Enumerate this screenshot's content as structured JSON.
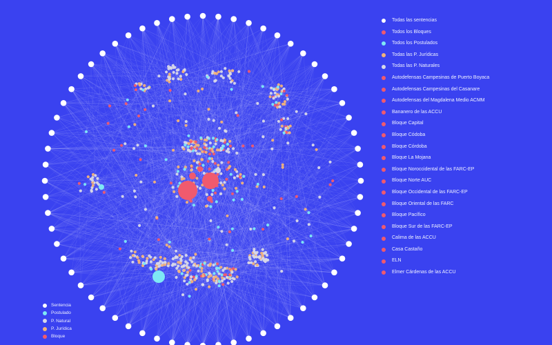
{
  "colors": {
    "background": "#3a42f0",
    "sentencia": "#ffffff",
    "postulado": "#7ee8f5",
    "p_natural": "#d8d8e8",
    "p_juridica": "#f2b27a",
    "bloque": "#f05a6e",
    "edge": "#ffffff"
  },
  "filters": [
    {
      "label": "Todas las sentencias",
      "color": "#ffffff"
    },
    {
      "label": "Todos los Bloques",
      "color": "#f05a6e"
    },
    {
      "label": "Todos los Postulados",
      "color": "#7ee8f5"
    },
    {
      "label": "Todas las P. Jurídicas",
      "color": "#f2b27a"
    },
    {
      "label": "Todas las P. Naturales",
      "color": "#d8d8e8"
    },
    {
      "label": "Autodefensas Campesinas de Puerto Boyaca",
      "color": "#f05a6e"
    },
    {
      "label": "Autodefensas Campesinas del Casanare",
      "color": "#f05a6e"
    },
    {
      "label": "Autodefensas del Magdalena Medio ACMM",
      "color": "#f05a6e"
    },
    {
      "label": "Bananero de las ACCU",
      "color": "#f05a6e"
    },
    {
      "label": "Bloque Capital",
      "color": "#f05a6e"
    },
    {
      "label": "Bloque Códoba",
      "color": "#f05a6e"
    },
    {
      "label": "Bloque Córdoba",
      "color": "#f05a6e"
    },
    {
      "label": "Bloque La Mojana",
      "color": "#f05a6e"
    },
    {
      "label": "Bloque Noroccidental de las FARC-EP",
      "color": "#f05a6e"
    },
    {
      "label": "Bloque Norte AUC",
      "color": "#f05a6e"
    },
    {
      "label": "Bloque Occidental de las FARC-EP",
      "color": "#f05a6e"
    },
    {
      "label": "Bloque Oriental de las FARC",
      "color": "#f05a6e"
    },
    {
      "label": "Bloque Pacífico",
      "color": "#f05a6e"
    },
    {
      "label": "Bloque Sur de las FARC-EP",
      "color": "#f05a6e"
    },
    {
      "label": "Calima de las ACCU",
      "color": "#f05a6e"
    },
    {
      "label": "Casa Castaño",
      "color": "#f05a6e"
    },
    {
      "label": "ELN",
      "color": "#f05a6e"
    },
    {
      "label": "Elmer Cárdenas de las ACCU",
      "color": "#f05a6e"
    }
  ],
  "legend": [
    {
      "label": "Sentencia",
      "color": "#ffffff"
    },
    {
      "label": "Postulado",
      "color": "#7ee8f5"
    },
    {
      "label": "P. Natural",
      "color": "#d8d8e8"
    },
    {
      "label": "P. Jurídica",
      "color": "#f2b27a"
    },
    {
      "label": "Bloque",
      "color": "#f05a6e"
    }
  ],
  "graph": {
    "sentencia_count": 64,
    "major_nodes": [
      {
        "type": "bloque"
      },
      {
        "type": "bloque"
      },
      {
        "type": "postulado"
      },
      {
        "type": "p_natural"
      },
      {
        "type": "bloque"
      },
      {
        "type": "bloque"
      },
      {
        "type": "bloque"
      },
      {
        "type": "postulado"
      }
    ],
    "clusters": [
      {
        "count": 30,
        "mix": "natural"
      },
      {
        "count": 24,
        "mix": "natural"
      },
      {
        "count": 14,
        "mix": "mixed"
      },
      {
        "count": 36,
        "mix": "mixed"
      },
      {
        "count": 18,
        "mix": "mixed"
      },
      {
        "count": 110,
        "mix": "mixed"
      },
      {
        "count": 80,
        "mix": "mixed"
      },
      {
        "count": 16,
        "mix": "natural"
      },
      {
        "count": 110,
        "mix": "mixed"
      },
      {
        "count": 40,
        "mix": "natural"
      }
    ],
    "scatter_count": 130
  }
}
